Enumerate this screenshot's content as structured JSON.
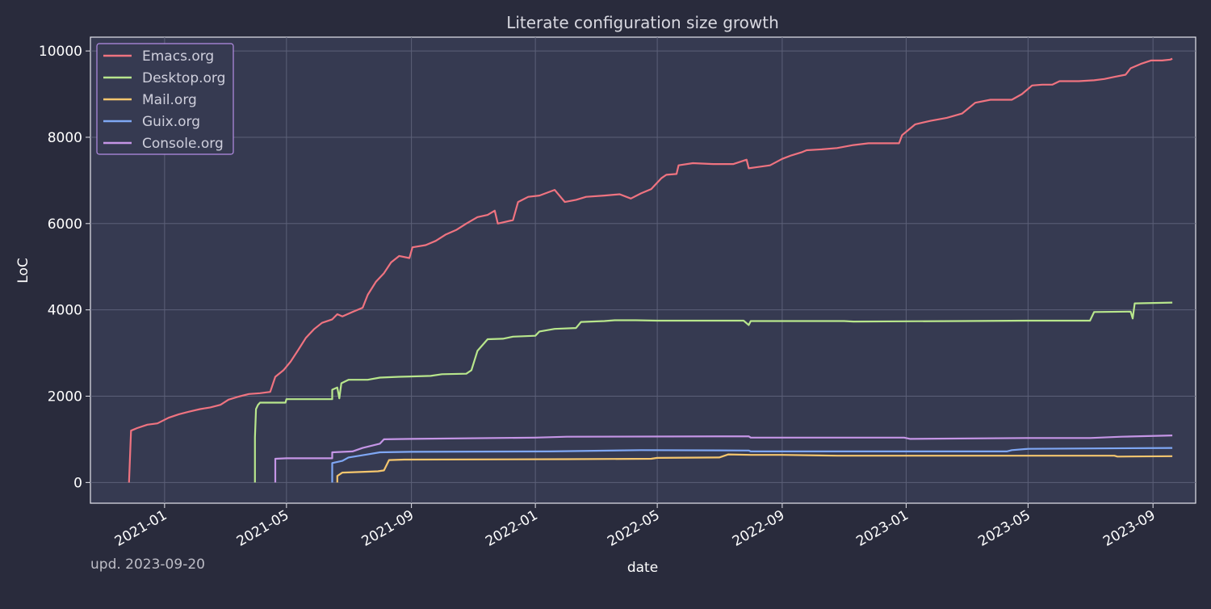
{
  "chart_data": {
    "type": "line",
    "title": "Literate configuration size growth",
    "xlabel": "date",
    "ylabel": "LoC",
    "x_ticks": [
      "2021-01-01",
      "2021-05-01",
      "2021-09-01",
      "2022-01-01",
      "2022-05-01",
      "2022-09-01",
      "2023-01-01",
      "2023-05-01",
      "2023-09-01"
    ],
    "x_tick_labels": [
      "2021-01",
      "2021-05",
      "2021-09",
      "2022-01",
      "2022-05",
      "2022-09",
      "2023-01",
      "2023-05",
      "2023-09"
    ],
    "xlim": [
      "2020-10-20",
      "2023-10-13"
    ],
    "y_ticks": [
      0,
      2000,
      4000,
      6000,
      8000,
      10000
    ],
    "y_tick_labels": [
      "0",
      "2000",
      "4000",
      "6000",
      "8000",
      "10000"
    ],
    "ylim": [
      -480,
      10320
    ],
    "grid": true,
    "legend_position": "top-left",
    "colors": {
      "background": "#292b3c",
      "plot_background": "#363a51",
      "axis": "#e6e6ee",
      "grid": "#5c6078",
      "legend_border": "#b58ee6"
    },
    "series": [
      {
        "name": "Emacs.org",
        "color": "#ef7380",
        "points": [
          [
            "2020-11-27",
            0
          ],
          [
            "2020-11-29",
            1200
          ],
          [
            "2020-12-05",
            1260
          ],
          [
            "2020-12-15",
            1340
          ],
          [
            "2020-12-25",
            1370
          ],
          [
            "2021-01-05",
            1500
          ],
          [
            "2021-01-15",
            1580
          ],
          [
            "2021-01-25",
            1640
          ],
          [
            "2021-02-05",
            1700
          ],
          [
            "2021-02-15",
            1740
          ],
          [
            "2021-02-25",
            1800
          ],
          [
            "2021-03-05",
            1920
          ],
          [
            "2021-03-15",
            1990
          ],
          [
            "2021-03-25",
            2050
          ],
          [
            "2021-04-05",
            2070
          ],
          [
            "2021-04-15",
            2100
          ],
          [
            "2021-04-20",
            2450
          ],
          [
            "2021-04-28",
            2600
          ],
          [
            "2021-05-05",
            2800
          ],
          [
            "2021-05-12",
            3050
          ],
          [
            "2021-05-20",
            3350
          ],
          [
            "2021-05-28",
            3550
          ],
          [
            "2021-06-05",
            3700
          ],
          [
            "2021-06-15",
            3780
          ],
          [
            "2021-06-20",
            3900
          ],
          [
            "2021-06-25",
            3850
          ],
          [
            "2021-07-05",
            3950
          ],
          [
            "2021-07-15",
            4050
          ],
          [
            "2021-07-20",
            4350
          ],
          [
            "2021-07-28",
            4650
          ],
          [
            "2021-08-05",
            4850
          ],
          [
            "2021-08-12",
            5100
          ],
          [
            "2021-08-20",
            5250
          ],
          [
            "2021-08-30",
            5200
          ],
          [
            "2021-09-02",
            5450
          ],
          [
            "2021-09-15",
            5500
          ],
          [
            "2021-09-25",
            5600
          ],
          [
            "2021-10-05",
            5750
          ],
          [
            "2021-10-15",
            5850
          ],
          [
            "2021-10-25",
            6000
          ],
          [
            "2021-11-05",
            6150
          ],
          [
            "2021-11-15",
            6200
          ],
          [
            "2021-11-22",
            6300
          ],
          [
            "2021-11-25",
            6000
          ],
          [
            "2021-12-10",
            6080
          ],
          [
            "2021-12-15",
            6500
          ],
          [
            "2021-12-25",
            6620
          ],
          [
            "2022-01-05",
            6650
          ],
          [
            "2022-01-20",
            6780
          ],
          [
            "2022-01-30",
            6500
          ],
          [
            "2022-02-10",
            6550
          ],
          [
            "2022-02-20",
            6620
          ],
          [
            "2022-03-10",
            6650
          ],
          [
            "2022-03-25",
            6680
          ],
          [
            "2022-04-05",
            6580
          ],
          [
            "2022-04-15",
            6700
          ],
          [
            "2022-04-25",
            6800
          ],
          [
            "2022-05-05",
            7050
          ],
          [
            "2022-05-10",
            7130
          ],
          [
            "2022-05-20",
            7150
          ],
          [
            "2022-05-22",
            7350
          ],
          [
            "2022-06-05",
            7400
          ],
          [
            "2022-06-25",
            7380
          ],
          [
            "2022-07-15",
            7380
          ],
          [
            "2022-07-28",
            7480
          ],
          [
            "2022-07-30",
            7280
          ],
          [
            "2022-08-05",
            7300
          ],
          [
            "2022-08-20",
            7350
          ],
          [
            "2022-09-01",
            7500
          ],
          [
            "2022-09-10",
            7580
          ],
          [
            "2022-09-20",
            7650
          ],
          [
            "2022-09-25",
            7700
          ],
          [
            "2022-10-10",
            7720
          ],
          [
            "2022-10-25",
            7750
          ],
          [
            "2022-11-10",
            7820
          ],
          [
            "2022-11-25",
            7860
          ],
          [
            "2022-12-25",
            7860
          ],
          [
            "2022-12-28",
            8050
          ],
          [
            "2023-01-10",
            8300
          ],
          [
            "2023-01-25",
            8380
          ],
          [
            "2023-02-10",
            8450
          ],
          [
            "2023-02-25",
            8550
          ],
          [
            "2023-03-10",
            8800
          ],
          [
            "2023-03-25",
            8870
          ],
          [
            "2023-04-15",
            8870
          ],
          [
            "2023-04-25",
            9000
          ],
          [
            "2023-05-05",
            9200
          ],
          [
            "2023-05-15",
            9220
          ],
          [
            "2023-05-25",
            9220
          ],
          [
            "2023-06-01",
            9300
          ],
          [
            "2023-06-20",
            9300
          ],
          [
            "2023-07-05",
            9320
          ],
          [
            "2023-07-15",
            9350
          ],
          [
            "2023-07-25",
            9400
          ],
          [
            "2023-08-05",
            9450
          ],
          [
            "2023-08-10",
            9600
          ],
          [
            "2023-08-20",
            9700
          ],
          [
            "2023-08-30",
            9780
          ],
          [
            "2023-09-10",
            9780
          ],
          [
            "2023-09-18",
            9800
          ],
          [
            "2023-09-20",
            9820
          ]
        ]
      },
      {
        "name": "Desktop.org",
        "color": "#b8e68c",
        "points": [
          [
            "2021-03-31",
            0
          ],
          [
            "2021-03-31",
            1050
          ],
          [
            "2021-04-01",
            1700
          ],
          [
            "2021-04-03",
            1800
          ],
          [
            "2021-04-05",
            1850
          ],
          [
            "2021-04-30",
            1850
          ],
          [
            "2021-05-01",
            1930
          ],
          [
            "2021-06-15",
            1930
          ],
          [
            "2021-06-15",
            2150
          ],
          [
            "2021-06-20",
            2200
          ],
          [
            "2021-06-22",
            1950
          ],
          [
            "2021-06-24",
            2300
          ],
          [
            "2021-07-01",
            2380
          ],
          [
            "2021-07-20",
            2380
          ],
          [
            "2021-08-01",
            2430
          ],
          [
            "2021-08-20",
            2450
          ],
          [
            "2021-09-20",
            2470
          ],
          [
            "2021-10-01",
            2510
          ],
          [
            "2021-10-25",
            2520
          ],
          [
            "2021-10-30",
            2600
          ],
          [
            "2021-11-05",
            3050
          ],
          [
            "2021-11-15",
            3320
          ],
          [
            "2021-11-30",
            3330
          ],
          [
            "2021-12-10",
            3380
          ],
          [
            "2022-01-01",
            3400
          ],
          [
            "2022-01-05",
            3500
          ],
          [
            "2022-01-20",
            3560
          ],
          [
            "2022-02-10",
            3580
          ],
          [
            "2022-02-15",
            3720
          ],
          [
            "2022-03-10",
            3740
          ],
          [
            "2022-03-20",
            3760
          ],
          [
            "2022-04-10",
            3760
          ],
          [
            "2022-05-01",
            3750
          ],
          [
            "2022-07-25",
            3750
          ],
          [
            "2022-07-30",
            3650
          ],
          [
            "2022-08-01",
            3740
          ],
          [
            "2022-11-01",
            3740
          ],
          [
            "2022-11-10",
            3730
          ],
          [
            "2023-02-25",
            3740
          ],
          [
            "2023-05-01",
            3750
          ],
          [
            "2023-07-01",
            3750
          ],
          [
            "2023-07-05",
            3950
          ],
          [
            "2023-08-10",
            3960
          ],
          [
            "2023-08-12",
            3800
          ],
          [
            "2023-08-14",
            4150
          ],
          [
            "2023-09-20",
            4170
          ]
        ]
      },
      {
        "name": "Mail.org",
        "color": "#f5c66e",
        "points": [
          [
            "2021-06-20",
            0
          ],
          [
            "2021-06-20",
            150
          ],
          [
            "2021-06-25",
            230
          ],
          [
            "2021-07-20",
            250
          ],
          [
            "2021-07-30",
            260
          ],
          [
            "2021-08-05",
            280
          ],
          [
            "2021-08-10",
            520
          ],
          [
            "2021-08-25",
            530
          ],
          [
            "2022-02-01",
            540
          ],
          [
            "2022-04-25",
            550
          ],
          [
            "2022-05-01",
            570
          ],
          [
            "2022-07-01",
            580
          ],
          [
            "2022-07-10",
            650
          ],
          [
            "2022-08-01",
            640
          ],
          [
            "2022-09-01",
            640
          ],
          [
            "2022-10-25",
            620
          ],
          [
            "2023-07-25",
            620
          ],
          [
            "2023-07-28",
            600
          ],
          [
            "2023-09-20",
            610
          ]
        ]
      },
      {
        "name": "Guix.org",
        "color": "#7fa7f4",
        "points": [
          [
            "2021-06-15",
            0
          ],
          [
            "2021-06-15",
            450
          ],
          [
            "2021-06-25",
            500
          ],
          [
            "2021-07-01",
            580
          ],
          [
            "2021-07-20",
            650
          ],
          [
            "2021-08-01",
            700
          ],
          [
            "2021-09-01",
            710
          ],
          [
            "2022-01-15",
            720
          ],
          [
            "2022-04-15",
            750
          ],
          [
            "2022-07-30",
            740
          ],
          [
            "2022-08-01",
            720
          ],
          [
            "2023-04-10",
            720
          ],
          [
            "2023-04-15",
            750
          ],
          [
            "2023-05-01",
            780
          ],
          [
            "2023-09-20",
            800
          ]
        ]
      },
      {
        "name": "Console.org",
        "color": "#c595e6",
        "points": [
          [
            "2021-04-20",
            0
          ],
          [
            "2021-04-20",
            550
          ],
          [
            "2021-05-01",
            560
          ],
          [
            "2021-06-15",
            560
          ],
          [
            "2021-06-15",
            700
          ],
          [
            "2021-07-05",
            720
          ],
          [
            "2021-07-15",
            800
          ],
          [
            "2021-08-01",
            900
          ],
          [
            "2021-08-05",
            1000
          ],
          [
            "2021-09-01",
            1010
          ],
          [
            "2022-01-01",
            1040
          ],
          [
            "2022-02-01",
            1060
          ],
          [
            "2022-07-30",
            1070
          ],
          [
            "2022-08-01",
            1040
          ],
          [
            "2022-12-30",
            1040
          ],
          [
            "2023-01-05",
            1010
          ],
          [
            "2023-05-01",
            1030
          ],
          [
            "2023-07-01",
            1030
          ],
          [
            "2023-08-01",
            1060
          ],
          [
            "2023-09-20",
            1090
          ]
        ]
      }
    ]
  },
  "footnote": "upd. 2023-09-20"
}
